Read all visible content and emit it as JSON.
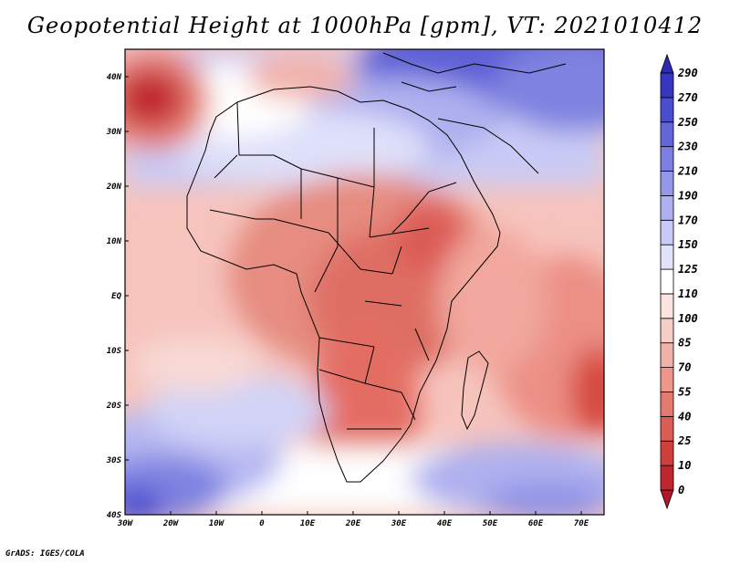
{
  "title": "Geopotential Height at 1000hPa [gpm], VT: 2021010412",
  "footer": "GrADS: IGES/COLA",
  "map": {
    "lon_labels": [
      "30W",
      "20W",
      "10W",
      "0",
      "10E",
      "20E",
      "30E",
      "40E",
      "50E",
      "60E",
      "70E"
    ],
    "lat_labels": [
      "40N",
      "30N",
      "20N",
      "10N",
      "EQ",
      "10S",
      "20S",
      "30S",
      "40S"
    ],
    "lon_values": [
      -30,
      -20,
      -10,
      0,
      10,
      20,
      30,
      40,
      50,
      60,
      70
    ],
    "lat_values": [
      40,
      30,
      20,
      10,
      0,
      -10,
      -20,
      -30,
      -40
    ],
    "lon_range": [
      -30,
      75
    ],
    "lat_range": [
      -40,
      45
    ]
  },
  "colorbar": {
    "levels": [
      "0",
      "10",
      "25",
      "40",
      "55",
      "70",
      "85",
      "100",
      "110",
      "125",
      "150",
      "170",
      "190",
      "210",
      "230",
      "250",
      "270",
      "290"
    ],
    "colors": [
      "#b2182b",
      "#c0272e",
      "#cf3f3c",
      "#dc5c56",
      "#e57a70",
      "#ed978c",
      "#f3b2a9",
      "#f8cdc6",
      "#fbe4e0",
      "#ffffff",
      "#e2e3fb",
      "#c8c9f6",
      "#aeb0ef",
      "#9598e8",
      "#7c7fe0",
      "#6366d8",
      "#4a4dcf",
      "#3537c2",
      "#2a2bb0"
    ]
  },
  "legend_tip_high": "#2a2bb0",
  "legend_tip_low": "#b2182b"
}
